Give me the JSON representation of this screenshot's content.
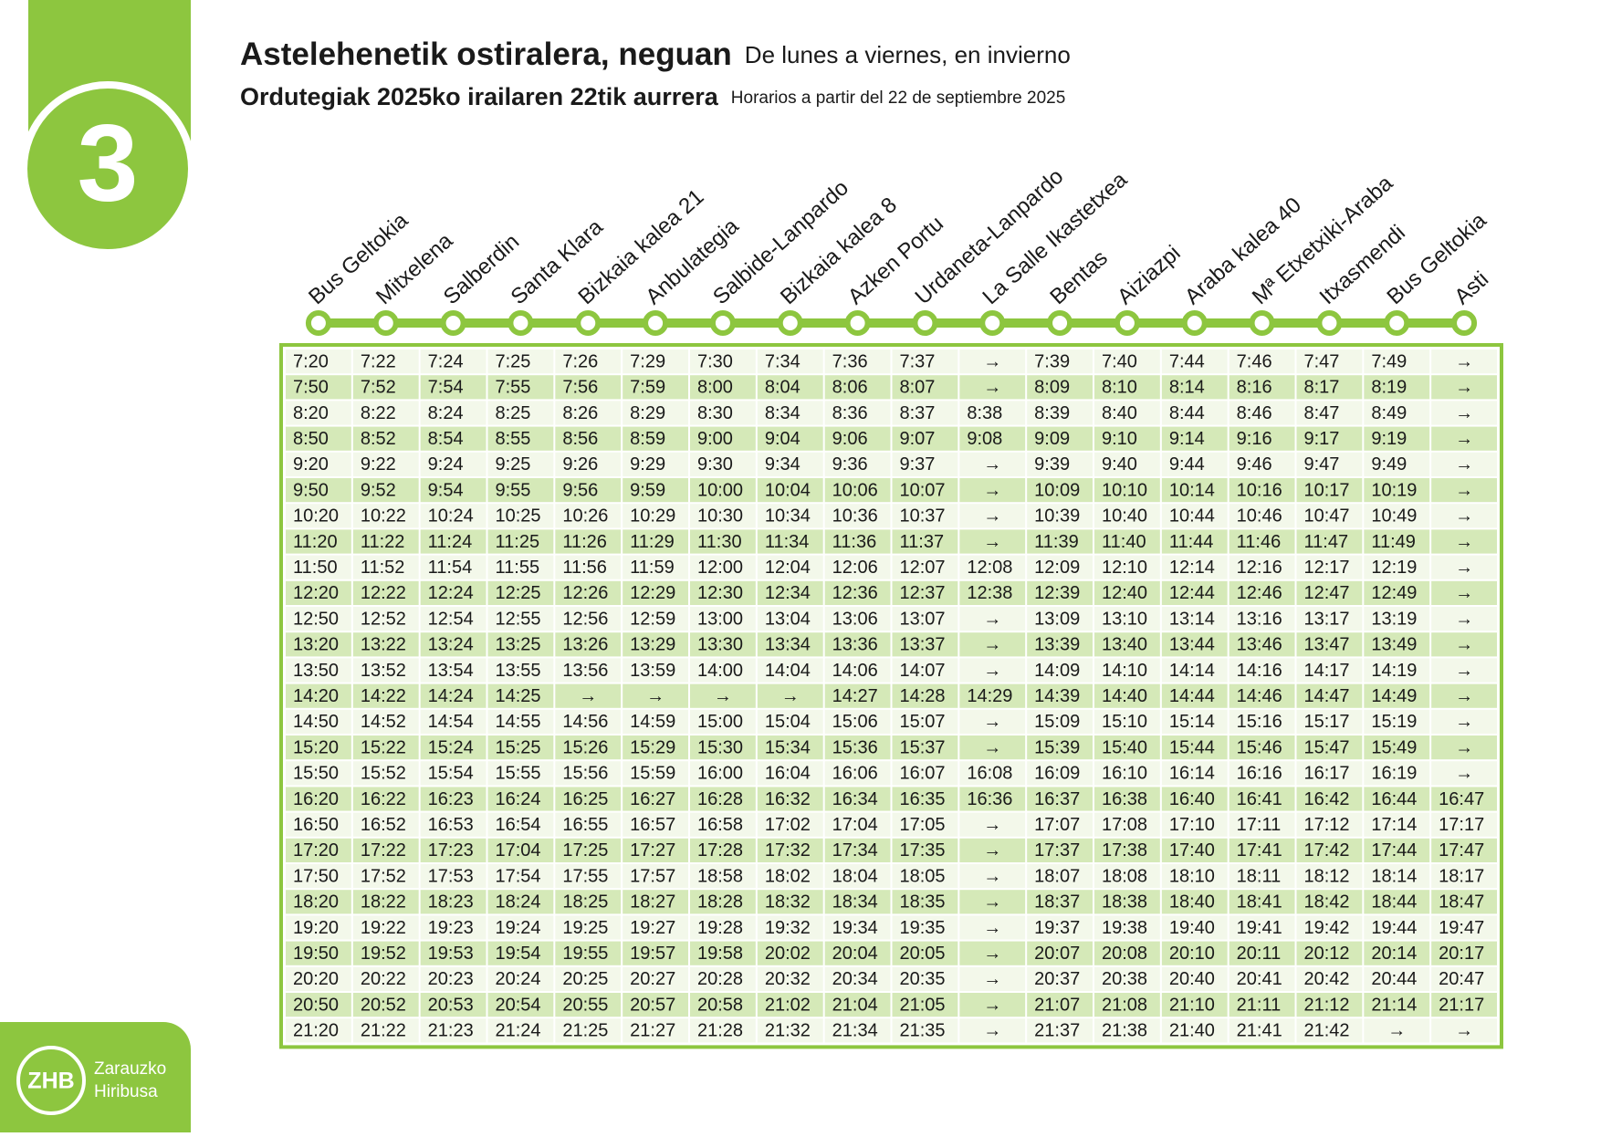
{
  "route_number": "3",
  "header": {
    "title": "Astelehenetik ostiralera, neguan",
    "title_es": "De lunes a viernes, en invierno",
    "schedule": "Ordutegiak 2025ko irailaren 22tik aurrera",
    "schedule_es": "Horarios a partir del 22 de septiembre 2025"
  },
  "stops": [
    "Bus Geltokia",
    "Mitxelena",
    "Salberdin",
    "Santa Klara",
    "Bizkaia kalea 21",
    "Anbulategia",
    "Salbide-Lanpardo",
    "Bizkaia kalea 8",
    "Azken Portu",
    "Urdaneta-Lanpardo",
    "La Salle Ikastetxea",
    "Bentas",
    "Aiziazpi",
    "Araba kalea 40",
    "Mª Etxetxiki-Araba",
    "Itxasmendi",
    "Bus Geltokia",
    "Asti"
  ],
  "table": {
    "rows": [
      [
        "7:20",
        "7:22",
        "7:24",
        "7:25",
        "7:26",
        "7:29",
        "7:30",
        "7:34",
        "7:36",
        "7:37",
        "→",
        "7:39",
        "7:40",
        "7:44",
        "7:46",
        "7:47",
        "7:49",
        "→"
      ],
      [
        "7:50",
        "7:52",
        "7:54",
        "7:55",
        "7:56",
        "7:59",
        "8:00",
        "8:04",
        "8:06",
        "8:07",
        "→",
        "8:09",
        "8:10",
        "8:14",
        "8:16",
        "8:17",
        "8:19",
        "→"
      ],
      [
        "8:20",
        "8:22",
        "8:24",
        "8:25",
        "8:26",
        "8:29",
        "8:30",
        "8:34",
        "8:36",
        "8:37",
        "8:38",
        "8:39",
        "8:40",
        "8:44",
        "8:46",
        "8:47",
        "8:49",
        "→"
      ],
      [
        "8:50",
        "8:52",
        "8:54",
        "8:55",
        "8:56",
        "8:59",
        "9:00",
        "9:04",
        "9:06",
        "9:07",
        "9:08",
        "9:09",
        "9:10",
        "9:14",
        "9:16",
        "9:17",
        "9:19",
        "→"
      ],
      [
        "9:20",
        "9:22",
        "9:24",
        "9:25",
        "9:26",
        "9:29",
        "9:30",
        "9:34",
        "9:36",
        "9:37",
        "→",
        "9:39",
        "9:40",
        "9:44",
        "9:46",
        "9:47",
        "9:49",
        "→"
      ],
      [
        "9:50",
        "9:52",
        "9:54",
        "9:55",
        "9:56",
        "9:59",
        "10:00",
        "10:04",
        "10:06",
        "10:07",
        "→",
        "10:09",
        "10:10",
        "10:14",
        "10:16",
        "10:17",
        "10:19",
        "→"
      ],
      [
        "10:20",
        "10:22",
        "10:24",
        "10:25",
        "10:26",
        "10:29",
        "10:30",
        "10:34",
        "10:36",
        "10:37",
        "→",
        "10:39",
        "10:40",
        "10:44",
        "10:46",
        "10:47",
        "10:49",
        "→"
      ],
      [
        "11:20",
        "11:22",
        "11:24",
        "11:25",
        "11:26",
        "11:29",
        "11:30",
        "11:34",
        "11:36",
        "11:37",
        "→",
        "11:39",
        "11:40",
        "11:44",
        "11:46",
        "11:47",
        "11:49",
        "→"
      ],
      [
        "11:50",
        "11:52",
        "11:54",
        "11:55",
        "11:56",
        "11:59",
        "12:00",
        "12:04",
        "12:06",
        "12:07",
        "12:08",
        "12:09",
        "12:10",
        "12:14",
        "12:16",
        "12:17",
        "12:19",
        "→"
      ],
      [
        "12:20",
        "12:22",
        "12:24",
        "12:25",
        "12:26",
        "12:29",
        "12:30",
        "12:34",
        "12:36",
        "12:37",
        "12:38",
        "12:39",
        "12:40",
        "12:44",
        "12:46",
        "12:47",
        "12:49",
        "→"
      ],
      [
        "12:50",
        "12:52",
        "12:54",
        "12:55",
        "12:56",
        "12:59",
        "13:00",
        "13:04",
        "13:06",
        "13:07",
        "→",
        "13:09",
        "13:10",
        "13:14",
        "13:16",
        "13:17",
        "13:19",
        "→"
      ],
      [
        "13:20",
        "13:22",
        "13:24",
        "13:25",
        "13:26",
        "13:29",
        "13:30",
        "13:34",
        "13:36",
        "13:37",
        "→",
        "13:39",
        "13:40",
        "13:44",
        "13:46",
        "13:47",
        "13:49",
        "→"
      ],
      [
        "13:50",
        "13:52",
        "13:54",
        "13:55",
        "13:56",
        "13:59",
        "14:00",
        "14:04",
        "14:06",
        "14:07",
        "→",
        "14:09",
        "14:10",
        "14:14",
        "14:16",
        "14:17",
        "14:19",
        "→"
      ],
      [
        "14:20",
        "14:22",
        "14:24",
        "14:25",
        "→",
        "→",
        "→",
        "→",
        "14:27",
        "14:28",
        "14:29",
        "14:39",
        "14:40",
        "14:44",
        "14:46",
        "14:47",
        "14:49",
        "→"
      ],
      [
        "14:50",
        "14:52",
        "14:54",
        "14:55",
        "14:56",
        "14:59",
        "15:00",
        "15:04",
        "15:06",
        "15:07",
        "→",
        "15:09",
        "15:10",
        "15:14",
        "15:16",
        "15:17",
        "15:19",
        "→"
      ],
      [
        "15:20",
        "15:22",
        "15:24",
        "15:25",
        "15:26",
        "15:29",
        "15:30",
        "15:34",
        "15:36",
        "15:37",
        "→",
        "15:39",
        "15:40",
        "15:44",
        "15:46",
        "15:47",
        "15:49",
        "→"
      ],
      [
        "15:50",
        "15:52",
        "15:54",
        "15:55",
        "15:56",
        "15:59",
        "16:00",
        "16:04",
        "16:06",
        "16:07",
        "16:08",
        "16:09",
        "16:10",
        "16:14",
        "16:16",
        "16:17",
        "16:19",
        "→"
      ],
      [
        "16:20",
        "16:22",
        "16:23",
        "16:24",
        "16:25",
        "16:27",
        "16:28",
        "16:32",
        "16:34",
        "16:35",
        "16:36",
        "16:37",
        "16:38",
        "16:40",
        "16:41",
        "16:42",
        "16:44",
        "16:47"
      ],
      [
        "16:50",
        "16:52",
        "16:53",
        "16:54",
        "16:55",
        "16:57",
        "16:58",
        "17:02",
        "17:04",
        "17:05",
        "→",
        "17:07",
        "17:08",
        "17:10",
        "17:11",
        "17:12",
        "17:14",
        "17:17"
      ],
      [
        "17:20",
        "17:22",
        "17:23",
        "17:04",
        "17:25",
        "17:27",
        "17:28",
        "17:32",
        "17:34",
        "17:35",
        "→",
        "17:37",
        "17:38",
        "17:40",
        "17:41",
        "17:42",
        "17:44",
        "17:47"
      ],
      [
        "17:50",
        "17:52",
        "17:53",
        "17:54",
        "17:55",
        "17:57",
        "18:58",
        "18:02",
        "18:04",
        "18:05",
        "→",
        "18:07",
        "18:08",
        "18:10",
        "18:11",
        "18:12",
        "18:14",
        "18:17"
      ],
      [
        "18:20",
        "18:22",
        "18:23",
        "18:24",
        "18:25",
        "18:27",
        "18:28",
        "18:32",
        "18:34",
        "18:35",
        "→",
        "18:37",
        "18:38",
        "18:40",
        "18:41",
        "18:42",
        "18:44",
        "18:47"
      ],
      [
        "19:20",
        "19:22",
        "19:23",
        "19:24",
        "19:25",
        "19:27",
        "19:28",
        "19:32",
        "19:34",
        "19:35",
        "→",
        "19:37",
        "19:38",
        "19:40",
        "19:41",
        "19:42",
        "19:44",
        "19:47"
      ],
      [
        "19:50",
        "19:52",
        "19:53",
        "19:54",
        "19:55",
        "19:57",
        "19:58",
        "20:02",
        "20:04",
        "20:05",
        "→",
        "20:07",
        "20:08",
        "20:10",
        "20:11",
        "20:12",
        "20:14",
        "20:17"
      ],
      [
        "20:20",
        "20:22",
        "20:23",
        "20:24",
        "20:25",
        "20:27",
        "20:28",
        "20:32",
        "20:34",
        "20:35",
        "→",
        "20:37",
        "20:38",
        "20:40",
        "20:41",
        "20:42",
        "20:44",
        "20:47"
      ],
      [
        "20:50",
        "20:52",
        "20:53",
        "20:54",
        "20:55",
        "20:57",
        "20:58",
        "21:02",
        "21:04",
        "21:05",
        "→",
        "21:07",
        "21:08",
        "21:10",
        "21:11",
        "21:12",
        "21:14",
        "21:17"
      ],
      [
        "21:20",
        "21:22",
        "21:23",
        "21:24",
        "21:25",
        "21:27",
        "21:28",
        "21:32",
        "21:34",
        "21:35",
        "→",
        "21:37",
        "21:38",
        "21:40",
        "21:41",
        "21:42",
        "→",
        "→"
      ]
    ]
  },
  "logo": {
    "abbr": "ZHB",
    "line1": "Zarauzko",
    "line2": "Hiribusa"
  }
}
